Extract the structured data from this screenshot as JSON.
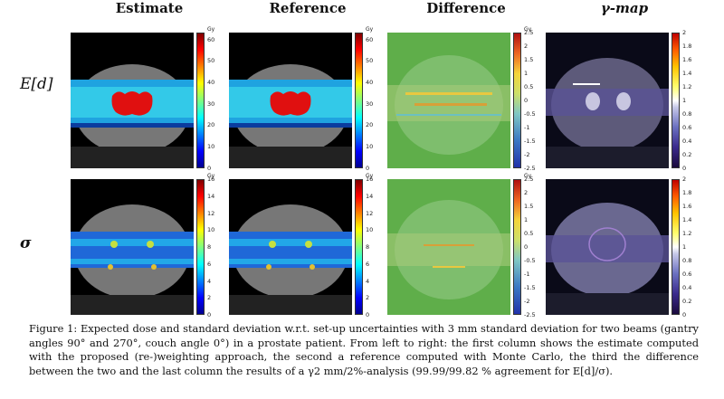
{
  "columns": [
    "Estimate",
    "Reference",
    "Difference",
    "γ-map"
  ],
  "rows": [
    {
      "label": "E[d]"
    },
    {
      "label": "σ"
    }
  ],
  "colorbars": {
    "unit": "Gy",
    "row1_dose_ticks": [
      "60",
      "50",
      "40",
      "30",
      "20",
      "10",
      "0"
    ],
    "row2_dose_ticks": [
      "16",
      "14",
      "12",
      "10",
      "8",
      "6",
      "4",
      "2",
      "0"
    ],
    "diff_ticks": [
      "2.5",
      "2",
      "1.5",
      "1",
      "0.5",
      "0",
      "-0.5",
      "-1",
      "-1.5",
      "-2",
      "-2.5"
    ],
    "gamma_ticks": [
      "2",
      "1.8",
      "1.6",
      "1.4",
      "1.2",
      "1",
      "0.8",
      "0.6",
      "0.4",
      "0.2",
      "0"
    ]
  },
  "caption": "Figure 1: Expected dose and standard deviation w.r.t. set-up uncertainties with 3 mm standard deviation for two beams (gantry angles 90° and 270°, couch angle 0°) in a prostate patient. From left to right: the first column shows the estimate computed with the proposed (re-)weighting approach, the second a reference computed with Monte Carlo, the third the difference between the two and the last column the results of a γ2 mm/2%-analysis (99.99/99.82 % agreement for E[d]/σ)."
}
